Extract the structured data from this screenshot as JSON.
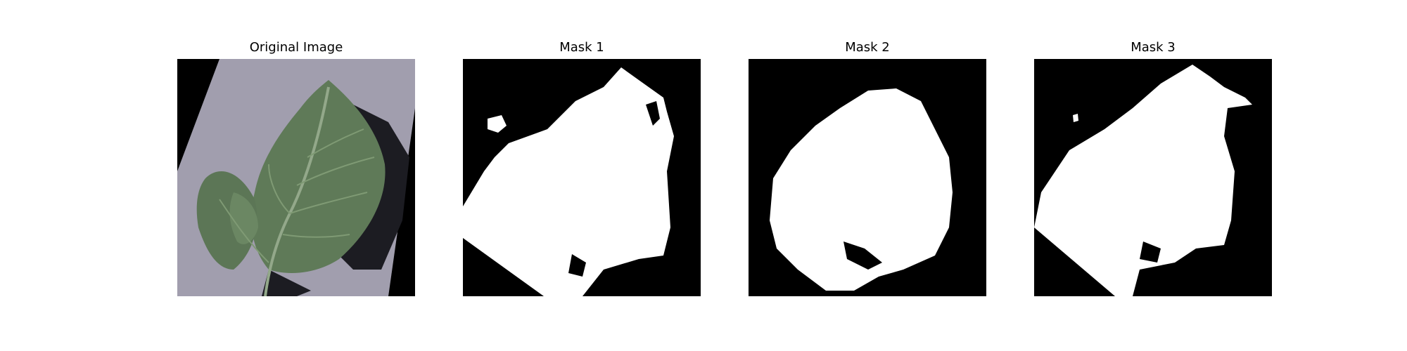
{
  "figure": {
    "panels": [
      {
        "title": "Original Image",
        "kind": "photo",
        "description_icon": "leaf-photo"
      },
      {
        "title": "Mask 1",
        "kind": "mask"
      },
      {
        "title": "Mask 2",
        "kind": "mask"
      },
      {
        "title": "Mask 3",
        "kind": "mask"
      }
    ]
  },
  "colors": {
    "mask_foreground": "#ffffff",
    "mask_background": "#000000",
    "photo_background": "#000000",
    "photo_surface": "#9b98a8",
    "leaf_main": "#5f7a58",
    "leaf_light": "#7f9a74",
    "leaf_dark": "#3e5338",
    "shadow": "#1c1c22"
  }
}
